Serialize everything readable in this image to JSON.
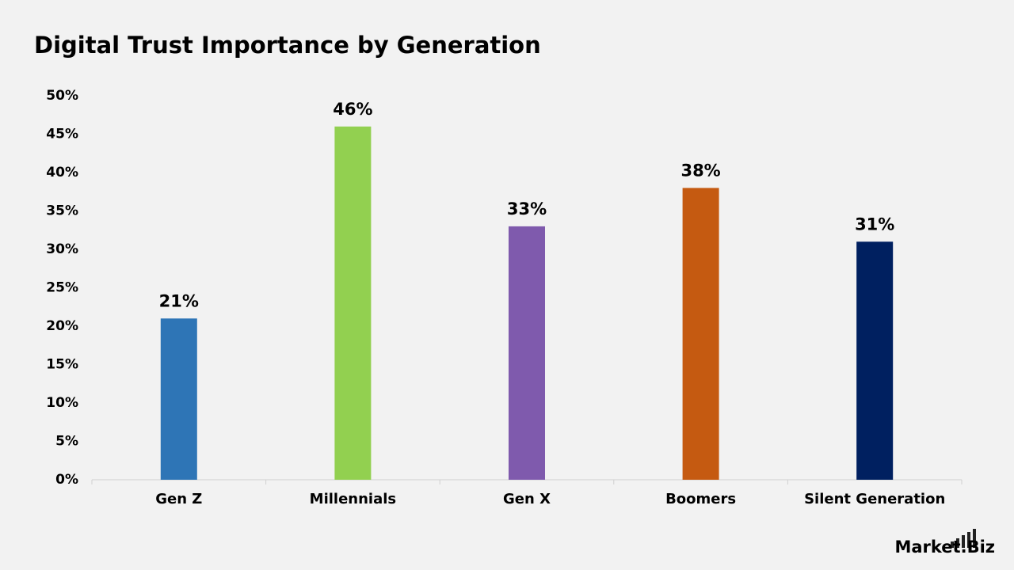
{
  "chart_data": {
    "type": "bar",
    "title": "Digital Trust Importance by Generation",
    "categories": [
      "Gen Z",
      "Millennials",
      "Gen X",
      "Boomers",
      "Silent Generation"
    ],
    "values": [
      21,
      46,
      33,
      38,
      31
    ],
    "value_labels": [
      "21%",
      "46%",
      "33%",
      "38%",
      "31%"
    ],
    "colors": [
      "#2e75b6",
      "#92d050",
      "#7f5aad",
      "#c55a11",
      "#002060"
    ],
    "ylim": [
      0,
      50
    ],
    "yticks": [
      {
        "value": 0,
        "label": "0%"
      },
      {
        "value": 5,
        "label": "5%"
      },
      {
        "value": 10,
        "label": "10%"
      },
      {
        "value": 15,
        "label": "15%"
      },
      {
        "value": 20,
        "label": "20%"
      },
      {
        "value": 25,
        "label": "25%"
      },
      {
        "value": 30,
        "label": "30%"
      },
      {
        "value": 35,
        "label": "35%"
      },
      {
        "value": 40,
        "label": "40%"
      },
      {
        "value": 45,
        "label": "45%"
      },
      {
        "value": 50,
        "label": "50%"
      }
    ],
    "grid": false
  },
  "brand": "Market.Biz"
}
